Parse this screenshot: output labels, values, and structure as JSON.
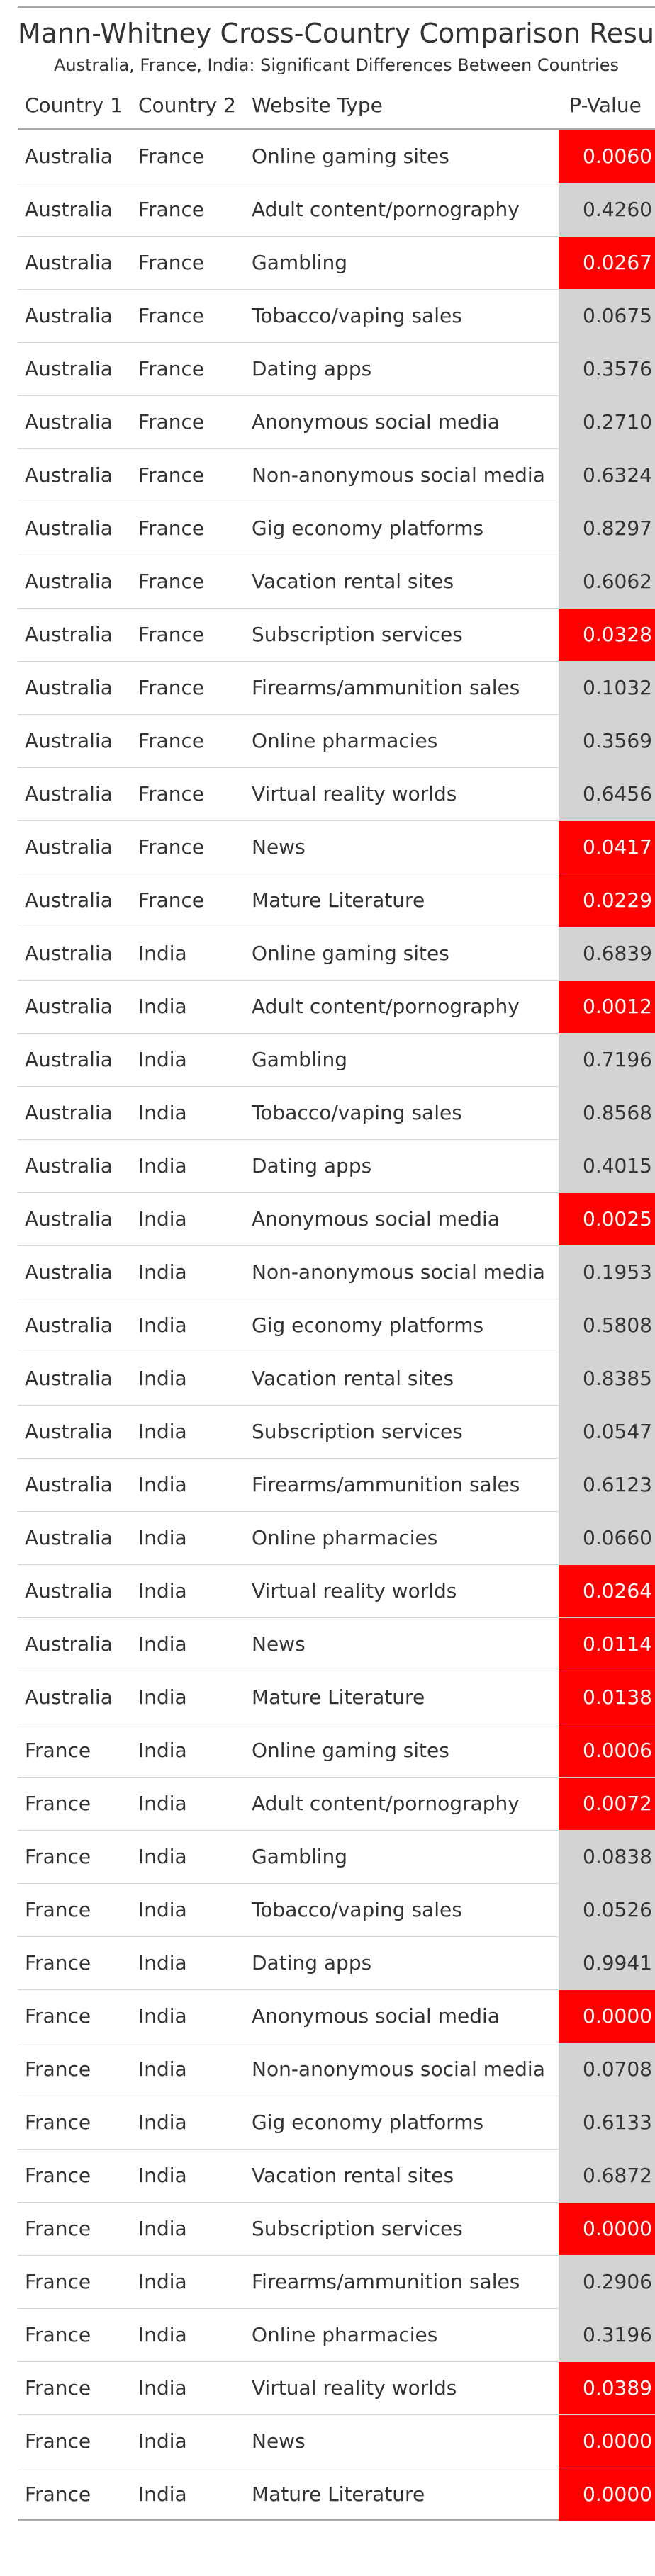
{
  "title": "Mann-Whitney Cross-Country Comparison Results",
  "subtitle": "Australia, France, India: Significant Differences Between Countries",
  "columns": {
    "country1": "Country 1",
    "country2": "Country 2",
    "website_type": "Website Type",
    "p_value": "P-Value"
  },
  "colors": {
    "significant": "#ff0000",
    "non_significant": "#d3d3d3"
  },
  "rows": [
    {
      "c1": "Australia",
      "c2": "France",
      "type": "Online gaming sites",
      "p": "0.0060",
      "sig": true
    },
    {
      "c1": "Australia",
      "c2": "France",
      "type": "Adult content/pornography",
      "p": "0.4260",
      "sig": false
    },
    {
      "c1": "Australia",
      "c2": "France",
      "type": "Gambling",
      "p": "0.0267",
      "sig": true
    },
    {
      "c1": "Australia",
      "c2": "France",
      "type": "Tobacco/vaping sales",
      "p": "0.0675",
      "sig": false
    },
    {
      "c1": "Australia",
      "c2": "France",
      "type": "Dating apps",
      "p": "0.3576",
      "sig": false
    },
    {
      "c1": "Australia",
      "c2": "France",
      "type": "Anonymous social media",
      "p": "0.2710",
      "sig": false
    },
    {
      "c1": "Australia",
      "c2": "France",
      "type": "Non-anonymous social media",
      "p": "0.6324",
      "sig": false
    },
    {
      "c1": "Australia",
      "c2": "France",
      "type": "Gig economy platforms",
      "p": "0.8297",
      "sig": false
    },
    {
      "c1": "Australia",
      "c2": "France",
      "type": "Vacation rental sites",
      "p": "0.6062",
      "sig": false
    },
    {
      "c1": "Australia",
      "c2": "France",
      "type": "Subscription services",
      "p": "0.0328",
      "sig": true
    },
    {
      "c1": "Australia",
      "c2": "France",
      "type": "Firearms/ammunition sales",
      "p": "0.1032",
      "sig": false
    },
    {
      "c1": "Australia",
      "c2": "France",
      "type": "Online pharmacies",
      "p": "0.3569",
      "sig": false
    },
    {
      "c1": "Australia",
      "c2": "France",
      "type": "Virtual reality worlds",
      "p": "0.6456",
      "sig": false
    },
    {
      "c1": "Australia",
      "c2": "France",
      "type": "News",
      "p": "0.0417",
      "sig": true
    },
    {
      "c1": "Australia",
      "c2": "France",
      "type": "Mature Literature",
      "p": "0.0229",
      "sig": true
    },
    {
      "c1": "Australia",
      "c2": "India",
      "type": "Online gaming sites",
      "p": "0.6839",
      "sig": false
    },
    {
      "c1": "Australia",
      "c2": "India",
      "type": "Adult content/pornography",
      "p": "0.0012",
      "sig": true
    },
    {
      "c1": "Australia",
      "c2": "India",
      "type": "Gambling",
      "p": "0.7196",
      "sig": false
    },
    {
      "c1": "Australia",
      "c2": "India",
      "type": "Tobacco/vaping sales",
      "p": "0.8568",
      "sig": false
    },
    {
      "c1": "Australia",
      "c2": "India",
      "type": "Dating apps",
      "p": "0.4015",
      "sig": false
    },
    {
      "c1": "Australia",
      "c2": "India",
      "type": "Anonymous social media",
      "p": "0.0025",
      "sig": true
    },
    {
      "c1": "Australia",
      "c2": "India",
      "type": "Non-anonymous social media",
      "p": "0.1953",
      "sig": false
    },
    {
      "c1": "Australia",
      "c2": "India",
      "type": "Gig economy platforms",
      "p": "0.5808",
      "sig": false
    },
    {
      "c1": "Australia",
      "c2": "India",
      "type": "Vacation rental sites",
      "p": "0.8385",
      "sig": false
    },
    {
      "c1": "Australia",
      "c2": "India",
      "type": "Subscription services",
      "p": "0.0547",
      "sig": false
    },
    {
      "c1": "Australia",
      "c2": "India",
      "type": "Firearms/ammunition sales",
      "p": "0.6123",
      "sig": false
    },
    {
      "c1": "Australia",
      "c2": "India",
      "type": "Online pharmacies",
      "p": "0.0660",
      "sig": false
    },
    {
      "c1": "Australia",
      "c2": "India",
      "type": "Virtual reality worlds",
      "p": "0.0264",
      "sig": true
    },
    {
      "c1": "Australia",
      "c2": "India",
      "type": "News",
      "p": "0.0114",
      "sig": true
    },
    {
      "c1": "Australia",
      "c2": "India",
      "type": "Mature Literature",
      "p": "0.0138",
      "sig": true
    },
    {
      "c1": "France",
      "c2": "India",
      "type": "Online gaming sites",
      "p": "0.0006",
      "sig": true
    },
    {
      "c1": "France",
      "c2": "India",
      "type": "Adult content/pornography",
      "p": "0.0072",
      "sig": true
    },
    {
      "c1": "France",
      "c2": "India",
      "type": "Gambling",
      "p": "0.0838",
      "sig": false
    },
    {
      "c1": "France",
      "c2": "India",
      "type": "Tobacco/vaping sales",
      "p": "0.0526",
      "sig": false
    },
    {
      "c1": "France",
      "c2": "India",
      "type": "Dating apps",
      "p": "0.9941",
      "sig": false
    },
    {
      "c1": "France",
      "c2": "India",
      "type": "Anonymous social media",
      "p": "0.0000",
      "sig": true
    },
    {
      "c1": "France",
      "c2": "India",
      "type": "Non-anonymous social media",
      "p": "0.0708",
      "sig": false
    },
    {
      "c1": "France",
      "c2": "India",
      "type": "Gig economy platforms",
      "p": "0.6133",
      "sig": false
    },
    {
      "c1": "France",
      "c2": "India",
      "type": "Vacation rental sites",
      "p": "0.6872",
      "sig": false
    },
    {
      "c1": "France",
      "c2": "India",
      "type": "Subscription services",
      "p": "0.0000",
      "sig": true
    },
    {
      "c1": "France",
      "c2": "India",
      "type": "Firearms/ammunition sales",
      "p": "0.2906",
      "sig": false
    },
    {
      "c1": "France",
      "c2": "India",
      "type": "Online pharmacies",
      "p": "0.3196",
      "sig": false
    },
    {
      "c1": "France",
      "c2": "India",
      "type": "Virtual reality worlds",
      "p": "0.0389",
      "sig": true
    },
    {
      "c1": "France",
      "c2": "India",
      "type": "News",
      "p": "0.0000",
      "sig": true
    },
    {
      "c1": "France",
      "c2": "India",
      "type": "Mature Literature",
      "p": "0.0000",
      "sig": true
    }
  ]
}
